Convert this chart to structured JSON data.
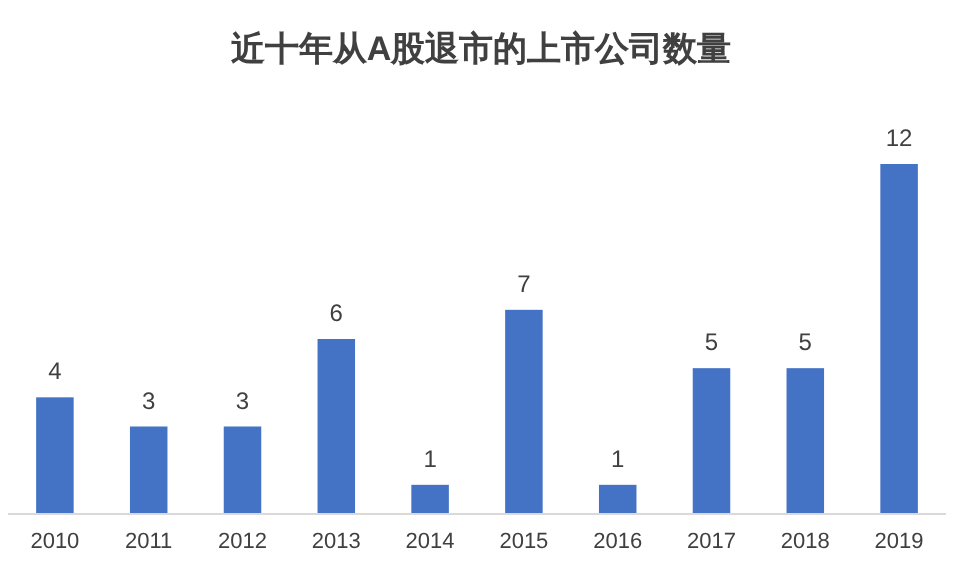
{
  "chart_data": {
    "type": "bar",
    "title": "近十年从A股退市的上市公司数量",
    "categories": [
      "2010",
      "2011",
      "2012",
      "2013",
      "2014",
      "2015",
      "2016",
      "2017",
      "2018",
      "2019"
    ],
    "values": [
      4,
      3,
      3,
      6,
      1,
      7,
      1,
      5,
      5,
      12
    ],
    "color": "#4472c4",
    "data_labels": true
  }
}
